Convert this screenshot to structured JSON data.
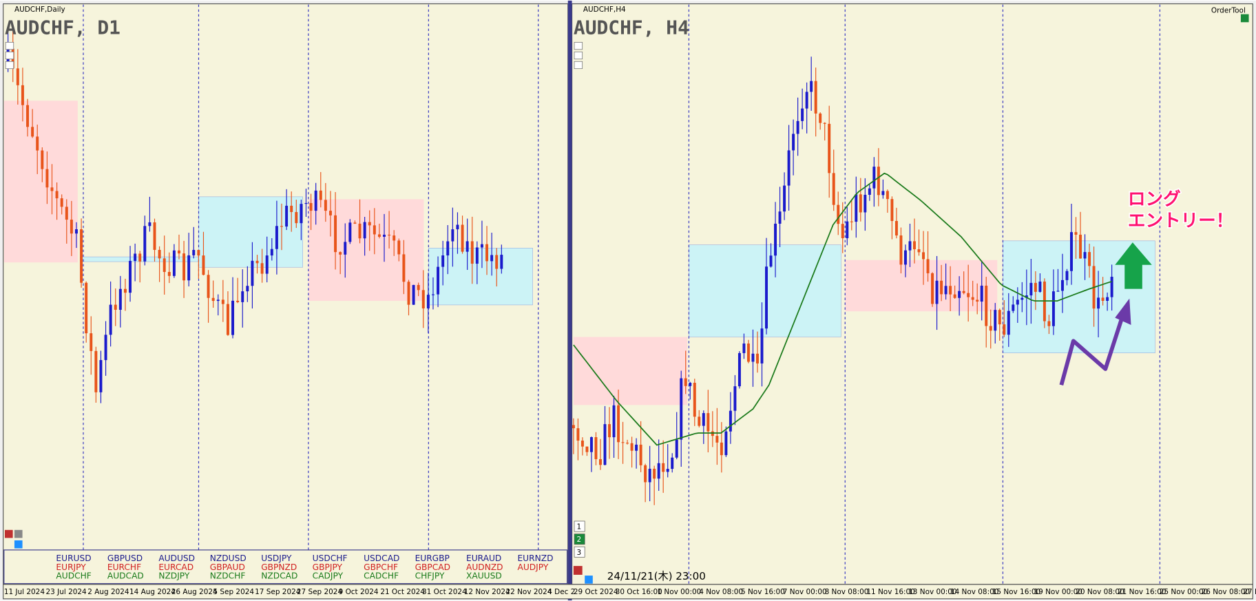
{
  "left_chart": {
    "window_label": "AUDCHF,Daily",
    "title": "AUDCHF, D1",
    "symbols": [
      [
        "EURUSD",
        "EURJPY",
        "AUDCHF"
      ],
      [
        "GBPUSD",
        "EURCHF",
        "AUDCAD"
      ],
      [
        "AUDUSD",
        "EURCAD",
        "NZDJPY"
      ],
      [
        "NZDUSD",
        "GBPAUD",
        "NZDCHF"
      ],
      [
        "USDJPY",
        "GBPNZD",
        "NZDCAD"
      ],
      [
        "USDCHF",
        "GBPJPY",
        "CADJPY"
      ],
      [
        "USDCAD",
        "GBPCHF",
        "CADCHF"
      ],
      [
        "EURGBP",
        "GBPCAD",
        "CHFJPY"
      ],
      [
        "EURAUD",
        "AUDNZD",
        "XAUUSD"
      ],
      [
        "EURNZD",
        "AUDJPY"
      ]
    ],
    "x_labels": [
      "11 Jul 2024",
      "23 Jul 2024",
      "2 Aug 2024",
      "14 Aug 2024",
      "26 Aug 2024",
      "5 Sep 2024",
      "17 Sep 2024",
      "27 Sep 2024",
      "9 Oct 2024",
      "21 Oct 2024",
      "31 Oct 2024",
      "12 Nov 2024",
      "22 Nov 2024",
      "4 Dec 2"
    ]
  },
  "right_chart": {
    "window_label": "AUDCHF,H4",
    "title": "AUDCHF, H4",
    "tool_label": "OrderTool",
    "annotation": [
      "ロング",
      "エントリー！"
    ],
    "timestamp": "24/11/21(木) 23:00",
    "buttons": [
      "1",
      "2",
      "3"
    ],
    "x_labels": [
      "29 Oct 2024",
      "30 Oct 16:00",
      "1 Nov 00:00",
      "4 Nov 08:00",
      "5 Nov 16:00",
      "7 Nov 00:00",
      "8 Nov 08:00",
      "11 Nov 16:00",
      "13 Nov 00:00",
      "14 Nov 08:00",
      "15 Nov 16:00",
      "19 Nov 00:00",
      "20 Nov 08:00",
      "21 Nov 16:00",
      "25 Nov 00:00",
      "26 Nov 08:00",
      "27 N"
    ]
  }
}
